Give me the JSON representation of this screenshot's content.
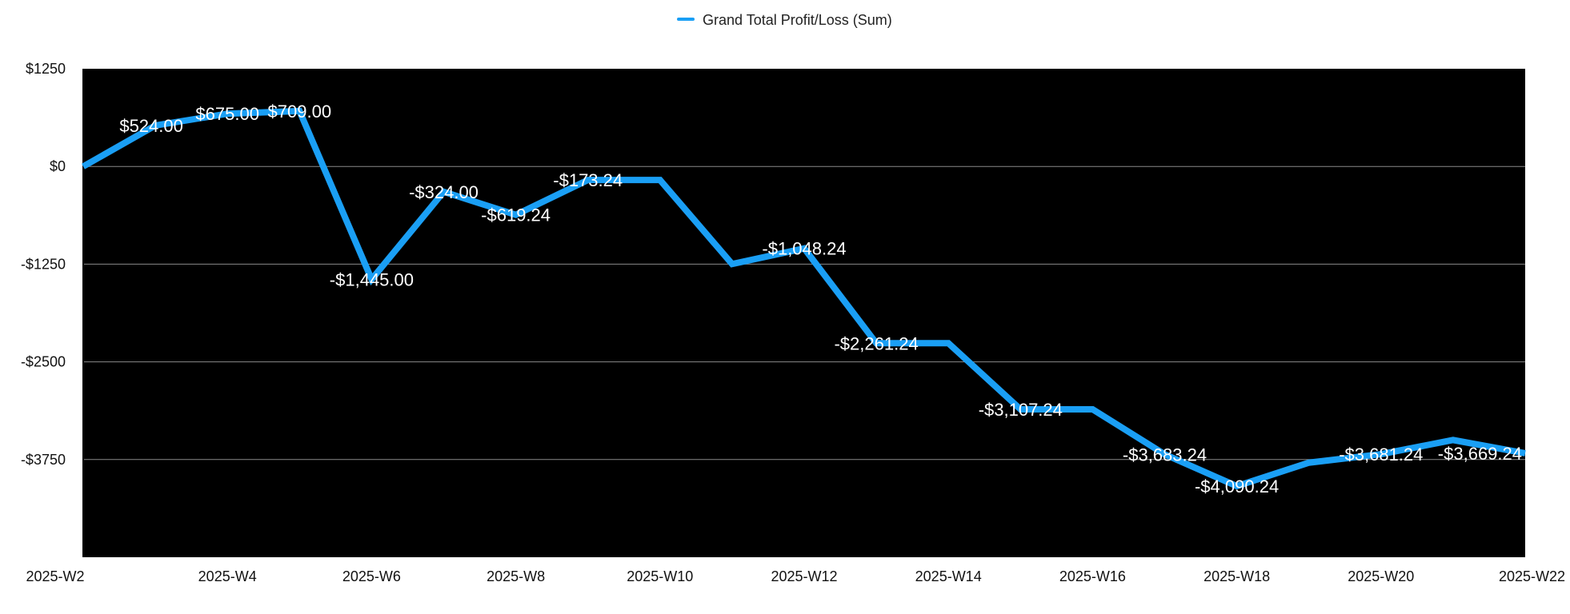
{
  "chart_data": {
    "type": "line",
    "title": "",
    "xlabel": "",
    "ylabel": "",
    "x": [
      "2025-W2",
      "2025-W3",
      "2025-W4",
      "2025-W5",
      "2025-W6",
      "2025-W7",
      "2025-W8",
      "2025-W9",
      "2025-W10",
      "2025-W11",
      "2025-W12",
      "2025-W13",
      "2025-W14",
      "2025-W15",
      "2025-W16",
      "2025-W17",
      "2025-W18",
      "2025-W19",
      "2025-W20",
      "2025-W21",
      "2025-W22"
    ],
    "x_tick_labels": [
      "2025-W2",
      "2025-W4",
      "2025-W6",
      "2025-W8",
      "2025-W10",
      "2025-W12",
      "2025-W14",
      "2025-W16",
      "2025-W18",
      "2025-W20",
      "2025-W22"
    ],
    "y_tick_labels": [
      "$1250",
      "$0",
      "-$1250",
      "-$2500",
      "-$3750"
    ],
    "y_ticks": [
      1250,
      0,
      -1250,
      -2500,
      -3750
    ],
    "ylim": [
      -5000,
      1250
    ],
    "grid": true,
    "legend_position": "top",
    "background_color": "#000000",
    "series": [
      {
        "name": "Grand Total Profit/Loss (Sum)",
        "color": "#1a9ff5",
        "values": [
          0,
          524,
          675,
          709,
          -1445,
          -324,
          -619.24,
          -173.24,
          -173.24,
          -1248.24,
          -1048.24,
          -2261.24,
          -2261.24,
          -3107.24,
          -3107.24,
          -3683.24,
          -4090.24,
          -3790.24,
          -3681.24,
          -3500.24,
          -3669.24
        ]
      }
    ],
    "data_labels": [
      {
        "index": 1,
        "text": "$524.00"
      },
      {
        "index": 2,
        "text": "$675.00"
      },
      {
        "index": 3,
        "text": "$709.00"
      },
      {
        "index": 4,
        "text": "-$1,445.00"
      },
      {
        "index": 5,
        "text": "-$324.00"
      },
      {
        "index": 6,
        "text": "-$619.24"
      },
      {
        "index": 7,
        "text": "-$173.24"
      },
      {
        "index": 10,
        "text": "-$1,048.24"
      },
      {
        "index": 11,
        "text": "-$2,261.24"
      },
      {
        "index": 13,
        "text": "-$3,107.24"
      },
      {
        "index": 15,
        "text": "-$3,683.24"
      },
      {
        "index": 16,
        "text": "-$4,090.24"
      },
      {
        "index": 18,
        "text": "-$3,681.24"
      },
      {
        "index": 20,
        "text": "-$3,669.24"
      }
    ]
  }
}
